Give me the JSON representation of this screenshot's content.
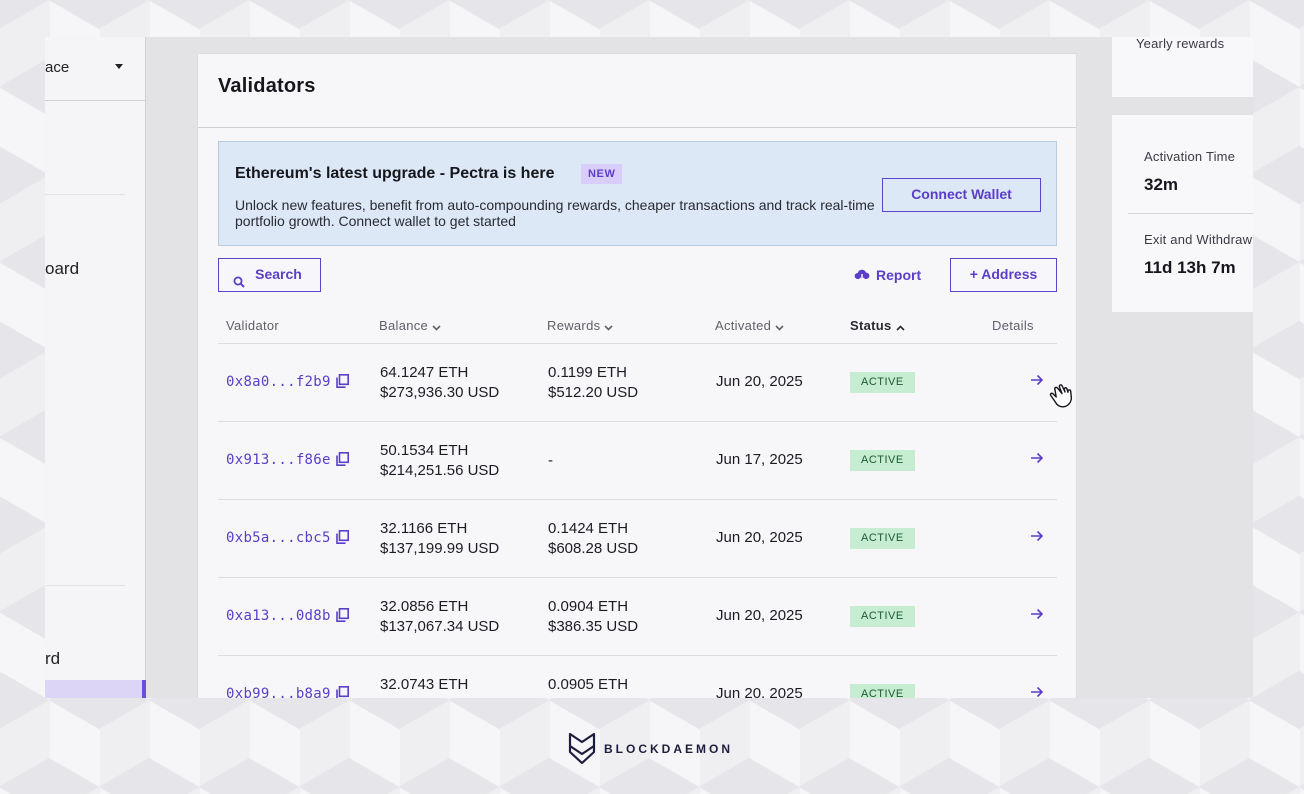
{
  "sidebar": {
    "workspace_label": "ace",
    "item_dashboard": "oard",
    "item_bottom": "rd"
  },
  "card": {
    "title": "Validators"
  },
  "banner": {
    "title": "Ethereum's latest upgrade - Pectra is here",
    "badge": "NEW",
    "description": "Unlock new features, benefit from auto-compounding rewards, cheaper transactions and track real-time portfolio growth. Connect wallet to get started",
    "connect_button": "Connect Wallet"
  },
  "toolbar": {
    "search_label": "Search",
    "report_label": "Report",
    "address_label": "+ Address"
  },
  "table": {
    "columns": {
      "validator": "Validator",
      "balance": "Balance",
      "rewards": "Rewards",
      "activated": "Activated",
      "status": "Status",
      "details": "Details"
    },
    "rows": [
      {
        "validator": "0x8a0...f2b9",
        "balance_eth": "64.1247 ETH",
        "balance_usd": "$273,936.30 USD",
        "rewards_eth": "0.1199 ETH",
        "rewards_usd": "$512.20 USD",
        "activated": "Jun 20, 2025",
        "status": "ACTIVE"
      },
      {
        "validator": "0x913...f86e",
        "balance_eth": "50.1534 ETH",
        "balance_usd": "$214,251.56 USD",
        "rewards_eth": "-",
        "rewards_usd": "",
        "activated": "Jun 17, 2025",
        "status": "ACTIVE"
      },
      {
        "validator": "0xb5a...cbc5",
        "balance_eth": "32.1166 ETH",
        "balance_usd": "$137,199.99 USD",
        "rewards_eth": "0.1424 ETH",
        "rewards_usd": "$608.28 USD",
        "activated": "Jun 20, 2025",
        "status": "ACTIVE"
      },
      {
        "validator": "0xa13...0d8b",
        "balance_eth": "32.0856 ETH",
        "balance_usd": "$137,067.34 USD",
        "rewards_eth": "0.0904 ETH",
        "rewards_usd": "$386.35 USD",
        "activated": "Jun 20, 2025",
        "status": "ACTIVE"
      },
      {
        "validator": "0xb99...b8a9",
        "balance_eth": "32.0743 ETH",
        "balance_usd": "",
        "rewards_eth": "0.0905 ETH",
        "rewards_usd": "",
        "activated": "Jun 20, 2025",
        "status": "ACTIVE"
      }
    ]
  },
  "right_panel": {
    "yearly_label": "Yearly rewards",
    "activation_label": "Activation Time",
    "activation_value": "32m",
    "exit_label": "Exit and Withdraw",
    "exit_value": "11d 13h 7m"
  },
  "footer": {
    "brand": "BLOCKDAEMON"
  },
  "colors": {
    "accent": "#5b3ec8",
    "banner_bg": "#dce8f5",
    "status_bg": "#c6ecd2",
    "status_text": "#1c5a33"
  },
  "icons": [
    "chevron-down-icon",
    "search-icon",
    "cloud-download-icon",
    "copy-icon",
    "arrow-right-icon",
    "chevron-up-icon",
    "pointer-hand-icon",
    "blockdaemon-logo-icon"
  ]
}
